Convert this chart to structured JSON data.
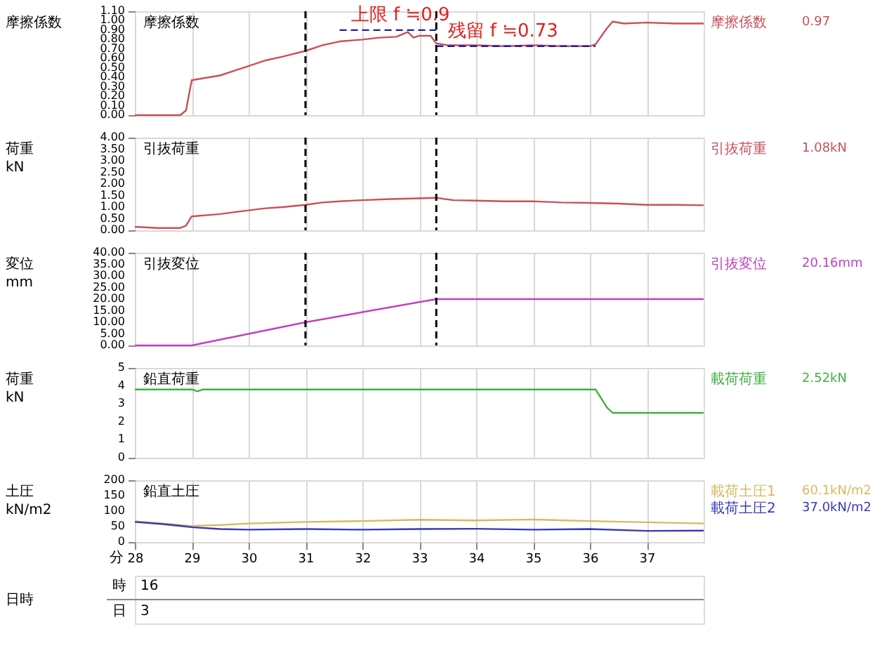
{
  "chart_data": [
    {
      "type": "line",
      "title": "摩擦係数",
      "ylabel": "摩擦係数",
      "xlim": [
        28,
        38
      ],
      "xticks": [
        28,
        29,
        30,
        31,
        32,
        33,
        34,
        35,
        36,
        37
      ],
      "ylim": [
        0,
        1.1
      ],
      "yticks": [
        {
          "value": 0,
          "label": "0.00"
        },
        {
          "value": 0.1,
          "label": "0.10"
        },
        {
          "value": 0.2,
          "label": "0.20"
        },
        {
          "value": 0.3,
          "label": "0.30"
        },
        {
          "value": 0.4,
          "label": "0.40"
        },
        {
          "value": 0.5,
          "label": "0.50"
        },
        {
          "value": 0.6,
          "label": "0.60"
        },
        {
          "value": 0.7,
          "label": "0.70"
        },
        {
          "value": 0.8,
          "label": "0.80"
        },
        {
          "value": 0.9,
          "label": "0.90"
        },
        {
          "value": 1.0,
          "label": "1.00"
        },
        {
          "value": 1.1,
          "label": "1.10"
        }
      ],
      "grid": true,
      "tick_labels": "y",
      "series": [
        {
          "name": "摩擦係数",
          "color": "#c8505a",
          "x": [
            28,
            28.8,
            28.9,
            29.0,
            29.2,
            29.5,
            29.8,
            30.0,
            30.3,
            30.6,
            31.0,
            31.3,
            31.6,
            32.0,
            32.3,
            32.6,
            32.8,
            32.9,
            33.0,
            33.2,
            33.3,
            33.5,
            34.0,
            34.5,
            35.0,
            35.5,
            36.0,
            36.1,
            36.3,
            36.4,
            36.6,
            37.0,
            37.5,
            38.0
          ],
          "values": [
            0,
            0,
            0.05,
            0.37,
            0.39,
            0.42,
            0.48,
            0.52,
            0.58,
            0.62,
            0.68,
            0.74,
            0.78,
            0.8,
            0.82,
            0.83,
            0.88,
            0.82,
            0.84,
            0.84,
            0.76,
            0.74,
            0.74,
            0.73,
            0.74,
            0.73,
            0.73,
            0.75,
            0.92,
            0.99,
            0.97,
            0.98,
            0.97,
            0.97
          ]
        },
        {
          "color": "#1f1f9f",
          "line_style": "dashed",
          "x": [
            31.6,
            33.3
          ],
          "values": [
            0.9,
            0.9
          ]
        },
        {
          "color": "#1f1f9f",
          "line_style": "dashed",
          "x": [
            33.3,
            36.1
          ],
          "values": [
            0.73,
            0.73
          ]
        }
      ],
      "ref_lines": [
        {
          "axis": "x",
          "value": 31,
          "color": "#000000",
          "line_style": "dashed"
        },
        {
          "axis": "x",
          "value": 33.3,
          "color": "#000000",
          "line_style": "dashed"
        }
      ],
      "annotations": [
        "0.97",
        {
          "text": "上限 f ≒0.9",
          "x": 31.8,
          "y": 0.9
        },
        {
          "text": "残留 f ≒0.73",
          "x": 33.5,
          "y": 0.73
        }
      ]
    },
    {
      "type": "line",
      "title": "引抜荷重",
      "ylabel": "荷重\nkN",
      "xlim": [
        28,
        38
      ],
      "xticks": [
        28,
        29,
        30,
        31,
        32,
        33,
        34,
        35,
        36,
        37
      ],
      "ylim": [
        0,
        4
      ],
      "yticks": [
        {
          "value": 0,
          "label": "0.00"
        },
        {
          "value": 0.5,
          "label": "0.50"
        },
        {
          "value": 1,
          "label": "1.00"
        },
        {
          "value": 1.5,
          "label": "1.50"
        },
        {
          "value": 2,
          "label": "2.00"
        },
        {
          "value": 2.5,
          "label": "2.50"
        },
        {
          "value": 3,
          "label": "3.00"
        },
        {
          "value": 3.5,
          "label": "3.50"
        },
        {
          "value": 4,
          "label": "4.00"
        }
      ],
      "grid": true,
      "tick_labels": "y",
      "series": [
        {
          "name": "引抜荷重",
          "color": "#c8505a",
          "x": [
            28,
            28.4,
            28.8,
            28.9,
            29.0,
            29.5,
            29.8,
            30.3,
            30.6,
            31.0,
            31.3,
            31.6,
            32.0,
            32.5,
            33.0,
            33.3,
            33.6,
            34.0,
            34.5,
            35.0,
            35.5,
            36.0,
            36.5,
            37.0,
            37.5,
            38.0
          ],
          "values": [
            0.15,
            0.1,
            0.1,
            0.2,
            0.6,
            0.7,
            0.8,
            0.95,
            1.0,
            1.1,
            1.2,
            1.25,
            1.3,
            1.35,
            1.38,
            1.4,
            1.3,
            1.28,
            1.25,
            1.25,
            1.2,
            1.18,
            1.15,
            1.1,
            1.1,
            1.08
          ]
        }
      ],
      "ref_lines": [
        {
          "axis": "x",
          "value": 31,
          "color": "#000000",
          "line_style": "dashed"
        },
        {
          "axis": "x",
          "value": 33.3,
          "color": "#000000",
          "line_style": "dashed"
        }
      ],
      "annotations": [
        "1.08kN"
      ]
    },
    {
      "type": "line",
      "title": "引抜変位",
      "ylabel": "変位\nmm",
      "xlim": [
        28,
        38
      ],
      "xticks": [
        28,
        29,
        30,
        31,
        32,
        33,
        34,
        35,
        36,
        37
      ],
      "ylim": [
        0,
        40
      ],
      "yticks": [
        {
          "value": 0,
          "label": "0.00"
        },
        {
          "value": 5,
          "label": "5.00"
        },
        {
          "value": 10,
          "label": "10.00"
        },
        {
          "value": 15,
          "label": "15.00"
        },
        {
          "value": 20,
          "label": "20.00"
        },
        {
          "value": 25,
          "label": "25.00"
        },
        {
          "value": 30,
          "label": "30.00"
        },
        {
          "value": 35,
          "label": "35.00"
        },
        {
          "value": 40,
          "label": "40.00"
        }
      ],
      "grid": true,
      "tick_labels": "y",
      "series": [
        {
          "name": "引抜変位",
          "color": "#c040c0",
          "x": [
            28,
            29.0,
            31.0,
            33.3,
            38.0
          ],
          "values": [
            0,
            0,
            10,
            20,
            20
          ]
        }
      ],
      "ref_lines": [
        {
          "axis": "x",
          "value": 31,
          "color": "#000000",
          "line_style": "dashed"
        },
        {
          "axis": "x",
          "value": 33.3,
          "color": "#000000",
          "line_style": "dashed"
        }
      ],
      "annotations": [
        "20.16mm"
      ]
    },
    {
      "type": "line",
      "title": "鉛直荷重",
      "ylabel": "荷重\nkN",
      "xlim": [
        28,
        38
      ],
      "xticks": [
        28,
        29,
        30,
        31,
        32,
        33,
        34,
        35,
        36,
        37
      ],
      "ylim": [
        0,
        5
      ],
      "yticks": [
        0,
        1,
        2,
        3,
        4,
        5
      ],
      "grid": true,
      "tick_labels": "y",
      "series": [
        {
          "name": "載荷荷重",
          "color": "#40b040",
          "x": [
            28,
            29.0,
            29.1,
            29.2,
            30,
            31,
            32,
            33,
            34,
            35,
            36.1,
            36.3,
            36.4,
            37,
            38
          ],
          "values": [
            3.8,
            3.8,
            3.7,
            3.8,
            3.8,
            3.8,
            3.8,
            3.8,
            3.8,
            3.8,
            3.8,
            2.8,
            2.5,
            2.5,
            2.5
          ]
        }
      ],
      "annotations": [
        "2.52kN"
      ]
    },
    {
      "type": "line",
      "title": "鉛直土圧",
      "ylabel": "土圧\nkN/m2",
      "xlabel": "分",
      "xlim": [
        28,
        38
      ],
      "xticks": [
        28,
        29,
        30,
        31,
        32,
        33,
        34,
        35,
        36,
        37
      ],
      "ylim": [
        0,
        200
      ],
      "yticks": [
        0,
        50,
        100,
        150,
        200
      ],
      "grid": true,
      "series": [
        {
          "name": "載荷土圧1",
          "color": "#d8b860",
          "x": [
            28,
            28.5,
            29,
            29.5,
            30,
            31,
            32,
            33,
            34,
            35,
            36,
            37,
            38
          ],
          "values": [
            67,
            60,
            52,
            55,
            60,
            65,
            68,
            72,
            70,
            73,
            68,
            64,
            60
          ]
        },
        {
          "name": "載荷土圧2",
          "color": "#3838b8",
          "x": [
            28,
            28.5,
            29,
            29.5,
            30,
            31,
            32,
            33,
            34,
            35,
            36,
            37,
            38
          ],
          "values": [
            65,
            58,
            48,
            42,
            40,
            42,
            40,
            42,
            43,
            40,
            42,
            36,
            37
          ]
        }
      ],
      "annotations": [
        "60.1kN/m2",
        "37.0kN/m2"
      ]
    },
    {
      "type": "other",
      "annotations": [
        "日時",
        "時",
        "16",
        "日",
        "3"
      ]
    }
  ]
}
